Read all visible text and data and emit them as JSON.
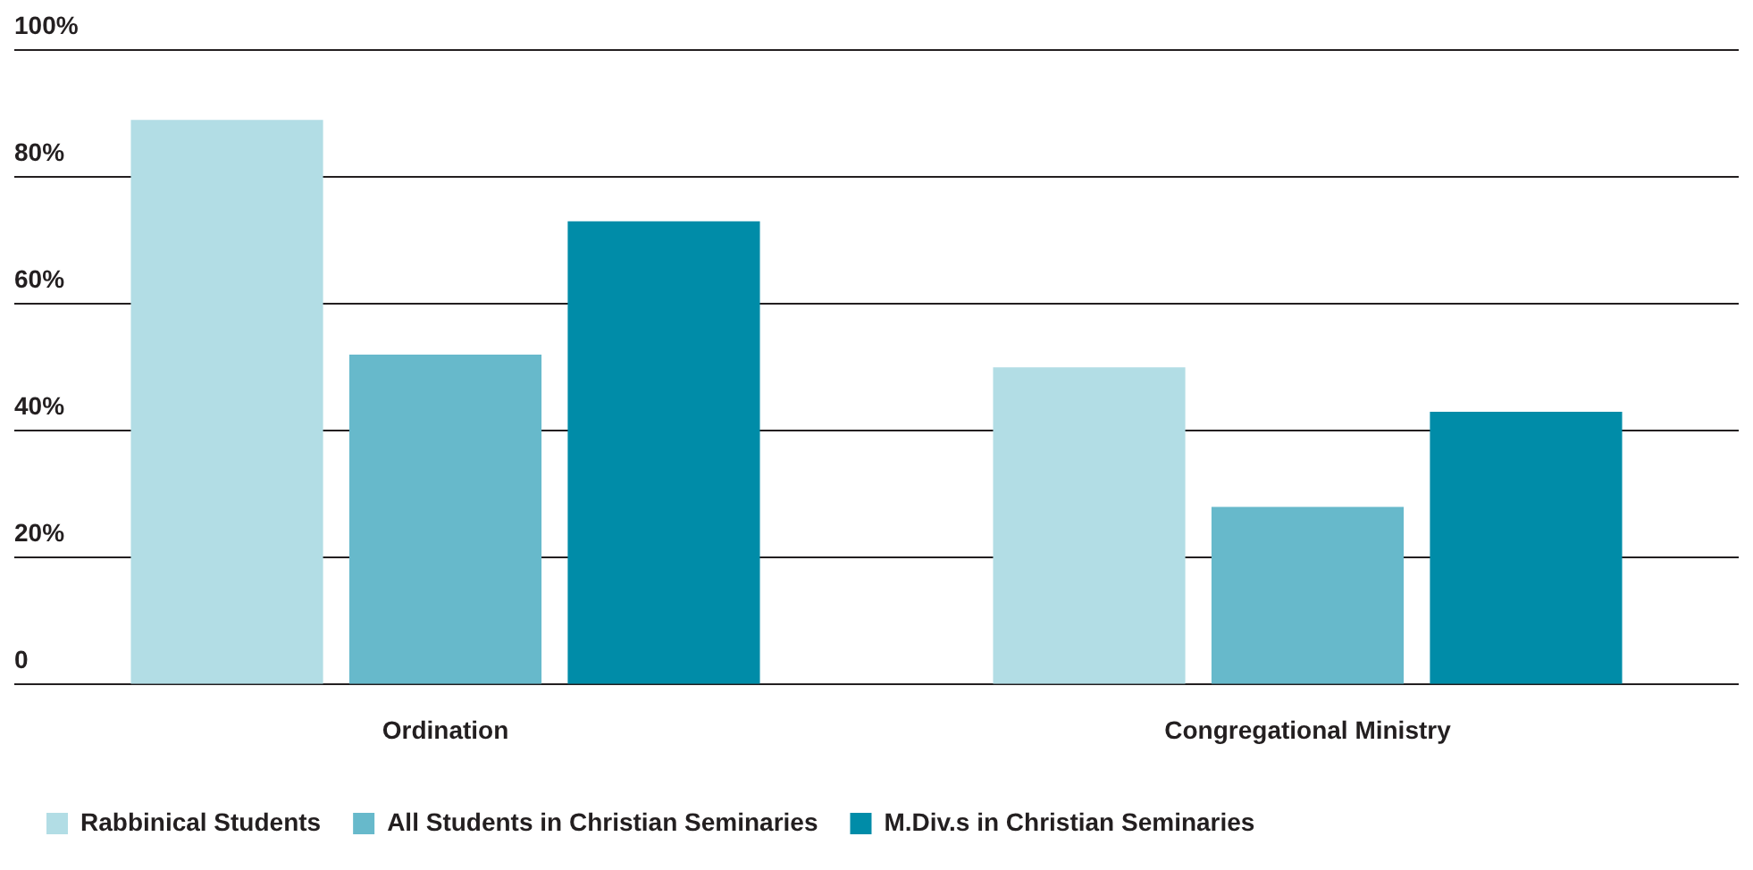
{
  "chart_data": {
    "type": "bar",
    "categories": [
      "Ordination",
      "Congregational Ministry"
    ],
    "series": [
      {
        "name": "Rabbinical Students",
        "color": "#b2dde5",
        "values": [
          89,
          50
        ]
      },
      {
        "name": "All Students in Christian Seminaries",
        "color": "#67b9cb",
        "values": [
          52,
          28
        ]
      },
      {
        "name": "M.Div.s in Christian Seminaries",
        "color": "#008ca8",
        "values": [
          73,
          43
        ]
      }
    ],
    "ylim": [
      0,
      100
    ],
    "yticks": [
      0,
      {
        "value": 20,
        "label": "20%"
      },
      {
        "value": 40,
        "label": "40%"
      },
      {
        "value": 60,
        "label": "60%"
      },
      {
        "value": 80,
        "label": "80%"
      },
      {
        "value": 100,
        "label": "100%"
      }
    ],
    "grid": "y",
    "legend": "bottom left"
  }
}
